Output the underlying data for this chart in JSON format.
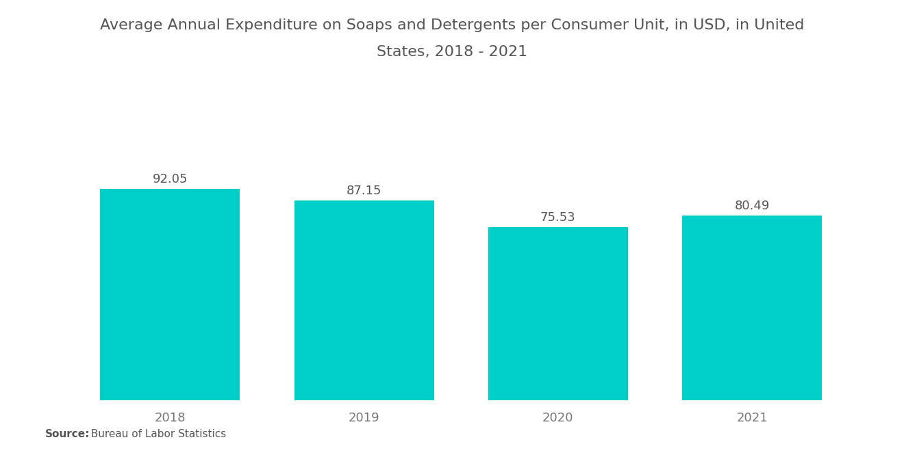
{
  "title_line1": "Average Annual Expenditure on Soaps and Detergents per Consumer Unit, in USD, in United",
  "title_line2": "States, 2018 - 2021",
  "categories": [
    "2018",
    "2019",
    "2020",
    "2021"
  ],
  "values": [
    92.05,
    87.15,
    75.53,
    80.49
  ],
  "bar_color": "#00CEC9",
  "background_color": "#FFFFFF",
  "title_color": "#555555",
  "label_color": "#555555",
  "tick_color": "#777777",
  "source_bold": "Source:",
  "source_text": "  Bureau of Labor Statistics",
  "ylim": [
    0,
    115
  ],
  "title_fontsize": 16,
  "label_fontsize": 13,
  "tick_fontsize": 13,
  "source_fontsize": 11,
  "bar_width": 0.72
}
